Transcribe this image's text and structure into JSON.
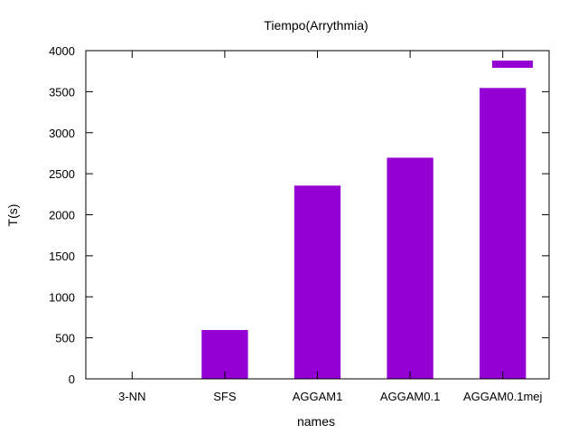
{
  "chart_data": {
    "type": "bar",
    "title": "Tiempo(Arrythmia)",
    "xlabel": "names",
    "ylabel": "T(s)",
    "categories": [
      "3-NN",
      "SFS",
      "AGGAM1",
      "AGGAM0.1",
      "AGGAM0.1mej"
    ],
    "values": [
      0,
      595,
      2355,
      2695,
      3545
    ],
    "ylim": [
      0,
      4000
    ],
    "yticks": [
      "0",
      "500",
      "1000",
      "1500",
      "2000",
      "2500",
      "3000",
      "3500",
      "4000"
    ],
    "grid": false,
    "legend": {
      "placement": "top-right",
      "entries": [
        ""
      ]
    },
    "colors": {
      "bar": "#9400d3",
      "axis": "#000000",
      "background": "#ffffff"
    }
  }
}
